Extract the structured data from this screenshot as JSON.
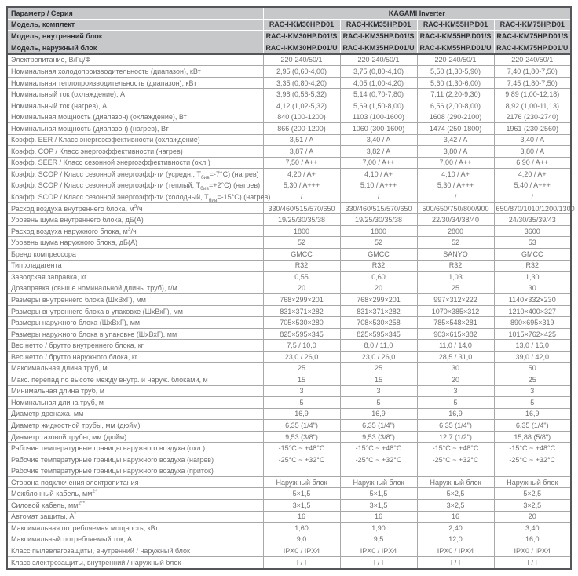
{
  "colors": {
    "header_bg": "#c7c8ca",
    "header_text": "#2f3034",
    "body_text": "#6d6e71",
    "border_dark": "#55565a",
    "border_light": "#a7a8aa",
    "row_bg": "#ffffff"
  },
  "table": {
    "corner_label": "Параметр / Серия",
    "series_title": "KAGAMI Inverter",
    "model_rows": [
      {
        "label": "Модель, комплект",
        "values": [
          "RAC-I-KM30HP.D01",
          "RAC-I-KM35HP.D01",
          "RAC-I-KM55HP.D01",
          "RAC-I-KM75HP.D01"
        ]
      },
      {
        "label": "Модель, внутренний блок",
        "values": [
          "RAC-I-KM30HP.D01/S",
          "RAC-I-KM35HP.D01/S",
          "RAC-I-KM55HP.D01/S",
          "RAC-I-KM75HP.D01/S"
        ]
      },
      {
        "label": "Модель, наружный блок",
        "values": [
          "RAC-I-KM30HP.D01/U",
          "RAC-I-KM35HP.D01/U",
          "RAC-I-KM55HP.D01/U",
          "RAC-I-KM75HP.D01/U"
        ]
      }
    ],
    "rows": [
      {
        "label": "Электропитание, В/Гц/Ф",
        "values": [
          "220-240/50/1",
          "220-240/50/1",
          "220-240/50/1",
          "220-240/50/1"
        ]
      },
      {
        "label": "Номинальная холодопроизводительность (диапазон), кВт",
        "values": [
          "2,95 (0,60-4,00)",
          "3,75 (0,80-4,10)",
          "5,50 (1,30-5,90)",
          "7,40 (1,80-7,50)"
        ]
      },
      {
        "label": "Номинальная теплопроизводительность (диапазон), кВт",
        "values": [
          "3,35 (0,80-4,20)",
          "4,05 (1,00-4,20)",
          "5,60 (1,30-6,00)",
          "7,45 (1,80-7,50)"
        ]
      },
      {
        "label": "Номинальный ток (охлаждение), А",
        "values": [
          "3,98 (0,56-5,32)",
          "5,14 (0,70-7,80)",
          "7,11 (2,20-9,30)",
          "9,89 (1,00-12,18)"
        ]
      },
      {
        "label": "Номинальный ток (нагрев), А",
        "values": [
          "4,12 (1,02-5,32)",
          "5,69 (1,50-8,00)",
          "6,56 (2,00-8,00)",
          "8,92 (1,00-11,13)"
        ]
      },
      {
        "label": "Номинальная мощность (диапазон) (охлаждение), Вт",
        "values": [
          "840 (100-1200)",
          "1103 (100-1600)",
          "1608 (290-2100)",
          "2176 (230-2740)"
        ]
      },
      {
        "label": "Номинальная мощность (диапазон) (нагрев), Вт",
        "values": [
          "866 (200-1200)",
          "1060 (300-1600)",
          "1474 (250-1800)",
          "1961 (230-2560)"
        ]
      },
      {
        "label": "Коэфф. EER / Класс энергоэффективности (охлаждение)",
        "values": [
          "3,51 / A",
          "3,40 / A",
          "3,42 / A",
          "3,40 / A"
        ]
      },
      {
        "label": "Коэфф. COP / Класс энергоэффективности (нагрев)",
        "values": [
          "3,87 / A",
          "3,82 / A",
          "3,80 / A",
          "3,80 / A"
        ]
      },
      {
        "label": "Коэфф. SEER / Класс сезонной энергоэффективности (охл.)",
        "values": [
          "7,50 / A++",
          "7,00 / A++",
          "7,00 / A++",
          "6,90 / A++"
        ]
      },
      {
        "label": "Коэфф. SCOP / Класс сезонной энергоэфф-ти (усредн., T_{бив}=-7°C) (нагрев)",
        "values": [
          "4,20 / A+",
          "4,10 / A+",
          "4,10 / A+",
          "4,20 / A+"
        ]
      },
      {
        "label": "Коэфф. SCOP / Класс сезонной энергоэфф-ти (теплый, T_{бив}=+2°C) (нагрев)",
        "values": [
          "5,30 / A+++",
          "5,10 / A+++",
          "5,30 / A+++",
          "5,40 / A+++"
        ]
      },
      {
        "label": "Коэфф. SCOP / Класс сезонной энергоэфф-ти (холодный, T_{бив}=-15°C) (нагрев)",
        "values": [
          "/",
          "/",
          "/",
          "/"
        ]
      },
      {
        "label": "Расход воздуха внутреннего блока, м^{3}/ч",
        "values": [
          "330/460/515/570/650",
          "330/460/515/570/650",
          "500/650/750/800/900",
          "650/870/1010/1200/1300"
        ]
      },
      {
        "label": "Уровень шума внутреннего блока, дБ(А)",
        "values": [
          "19/25/30/35/38",
          "19/25/30/35/38",
          "22/30/34/38/40",
          "24/30/35/39/43"
        ]
      },
      {
        "label": "Расход воздуха наружного блока, м^{3}/ч",
        "values": [
          "1800",
          "1800",
          "2800",
          "3600"
        ]
      },
      {
        "label": "Уровень шума наружного блока, дБ(А)",
        "values": [
          "52",
          "52",
          "52",
          "53"
        ]
      },
      {
        "label": "Бренд компрессора",
        "values": [
          "GMCC",
          "GMCC",
          "SANYO",
          "GMCC"
        ]
      },
      {
        "label": "Тип хладагента",
        "values": [
          "R32",
          "R32",
          "R32",
          "R32"
        ]
      },
      {
        "label": "Заводская заправка, кг",
        "values": [
          "0,55",
          "0,60",
          "1,03",
          "1,30"
        ]
      },
      {
        "label": "Дозаправка (свыше номинальной длины труб), г/м",
        "values": [
          "20",
          "20",
          "25",
          "30"
        ]
      },
      {
        "label": "Размеры внутреннего блока (ШхВхГ), мм",
        "values": [
          "768×299×201",
          "768×299×201",
          "997×312×222",
          "1140×332×230"
        ]
      },
      {
        "label": "Размеры внутреннего блока в упаковке (ШхВхГ), мм",
        "values": [
          "831×371×282",
          "831×371×282",
          "1070×385×312",
          "1210×400×327"
        ]
      },
      {
        "label": "Размеры наружного блока (ШхВхГ), мм",
        "values": [
          "705×530×280",
          "708×530×258",
          "785×548×281",
          "890×695×319"
        ]
      },
      {
        "label": "Размеры наружного блока в упаковке (ШхВхГ), мм",
        "values": [
          "825×595×345",
          "825×595×345",
          "903×615×382",
          "1015×762×425"
        ]
      },
      {
        "label": "Вес нетто / брутто внутреннего блока, кг",
        "values": [
          "7,5 / 10,0",
          "8,0 / 11,0",
          "11,0 / 14,0",
          "13,0 / 16,0"
        ]
      },
      {
        "label": "Вес нетто / брутто наружного блока, кг",
        "values": [
          "23,0 / 26,0",
          "23,0 / 26,0",
          "28,5 / 31,0",
          "39,0 / 42,0"
        ]
      },
      {
        "label": "Максимальная длина труб, м",
        "values": [
          "25",
          "25",
          "30",
          "50"
        ]
      },
      {
        "label": "Макс. перепад по высоте между внутр. и наруж. блоками, м",
        "values": [
          "15",
          "15",
          "20",
          "25"
        ]
      },
      {
        "label": "Минимальная длина труб, м",
        "values": [
          "3",
          "3",
          "3",
          "3"
        ]
      },
      {
        "label": "Номинальная длина труб, м",
        "values": [
          "5",
          "5",
          "5",
          "5"
        ]
      },
      {
        "label": "Диаметр дренажа, мм",
        "values": [
          "16,9",
          "16,9",
          "16,9",
          "16,9"
        ]
      },
      {
        "label": "Диаметр жидкостной трубы, мм (дюйм)",
        "values": [
          "6,35 (1/4\")",
          "6,35 (1/4\")",
          "6,35 (1/4\")",
          "6,35 (1/4\")"
        ]
      },
      {
        "label": "Диаметр газовой трубы, мм (дюйм)",
        "values": [
          "9,53 (3/8\")",
          "9,53 (3/8\")",
          "12,7 (1/2\")",
          "15,88 (5/8\")"
        ]
      },
      {
        "label": "Рабочие температурные границы наружного воздуха (охл.)",
        "values": [
          "-15°C ~ +48°C",
          "-15°C ~ +48°C",
          "-15°C ~ +48°C",
          "-15°C ~ +48°C"
        ]
      },
      {
        "label": "Рабочие температурные границы наружного воздуха (нагрев)",
        "values": [
          "-25°C ~ +32°C",
          "-25°C ~ +32°C",
          "-25°C ~ +32°C",
          "-25°C ~ +32°C"
        ]
      },
      {
        "label": "Рабочие температурные границы наружного воздуха (приток)",
        "values": [
          "",
          "",
          "",
          ""
        ]
      },
      {
        "label": "Сторона подключения электропитания",
        "values": [
          "Наружный блок",
          "Наружный блок",
          "Наружный блок",
          "Наружный блок"
        ]
      },
      {
        "label": "Межблочный кабель, мм^{2*}",
        "values": [
          "5×1,5",
          "5×1,5",
          "5×2,5",
          "5×2,5"
        ]
      },
      {
        "label": "Силовой кабель, мм^{2**}",
        "values": [
          "3×1,5",
          "3×1,5",
          "3×2,5",
          "3×2,5"
        ]
      },
      {
        "label": "Автомат защиты, А^{*}",
        "values": [
          "16",
          "16",
          "16",
          "20"
        ]
      },
      {
        "label": "Максимальная потребляемая мощность, кВт",
        "values": [
          "1,60",
          "1,90",
          "2,40",
          "3,40"
        ]
      },
      {
        "label": "Максимальный потребляемый ток, А",
        "values": [
          "9,0",
          "9,5",
          "12,0",
          "16,0"
        ]
      },
      {
        "label": "Класс пылевлагозащиты, внутренний / наружный блок",
        "values": [
          "IPX0 / IPX4",
          "IPX0 / IPX4",
          "IPX0 / IPX4",
          "IPX0 / IPX4"
        ]
      },
      {
        "label": "Класс электрозащиты, внутренний / наружный блок",
        "values": [
          "I / I",
          "I / I",
          "I / I",
          "I / I"
        ]
      }
    ]
  }
}
